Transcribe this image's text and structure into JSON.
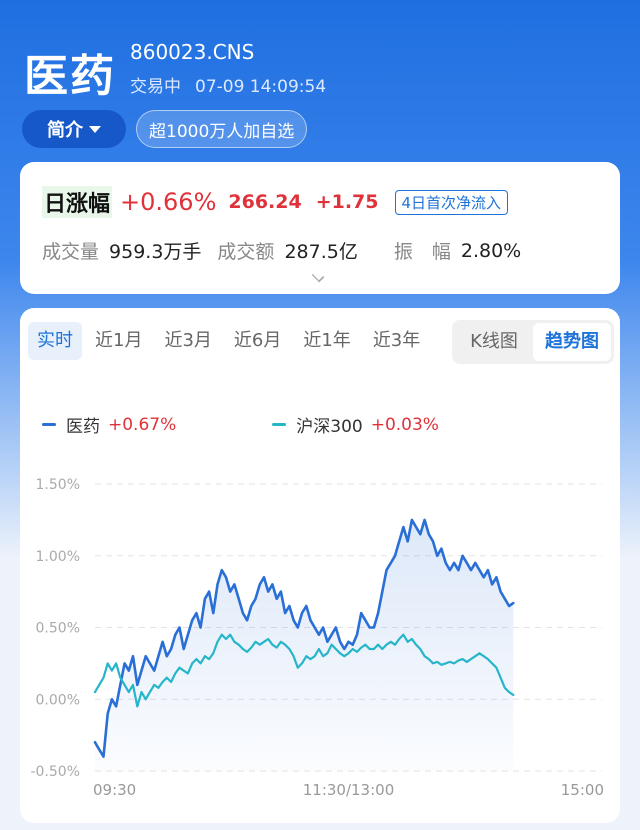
{
  "header": {
    "name": "医药",
    "code": "860023.CNS",
    "status": "交易中",
    "datetime": "07-09 14:09:54",
    "intro_label": "简介",
    "watch_label": "超1000万人加自选"
  },
  "quote": {
    "change_label": "日涨幅",
    "change_pct": "+0.66%",
    "price": "266.24",
    "change_abs": "+1.75",
    "flow_badge": "4日首次净流入",
    "volume_label": "成交量",
    "volume_value": "959.3万手",
    "amount_label": "成交额",
    "amount_value": "287.5亿",
    "amplitude_label": "振　幅",
    "amplitude_value": "2.80%"
  },
  "tabs": [
    "实时",
    "近1月",
    "近3月",
    "近6月",
    "近1年",
    "近3年"
  ],
  "active_tab": 0,
  "modes": [
    "K线图",
    "趋势图"
  ],
  "active_mode": 1,
  "colors": {
    "series_main": "#2a6fd6",
    "series_index": "#26b5c9",
    "up": "#e0323a",
    "accent": "#1e73d8"
  },
  "chart_data": {
    "type": "line",
    "xlabel": "",
    "ylabel": "",
    "x_ticks": [
      "09:30",
      "11:30/13:00",
      "15:00"
    ],
    "y_ticks": [
      "1.50%",
      "1.00%",
      "0.50%",
      "0.00%",
      "-0.50%"
    ],
    "ylim": [
      -0.5,
      1.5
    ],
    "x_range_minutes": [
      0,
      240
    ],
    "grid": true,
    "legend_position": "top-left",
    "series": [
      {
        "name": "医药",
        "value_label": "+0.67%",
        "color": "#2a6fd6",
        "fill": true,
        "points": [
          [
            0,
            -0.3
          ],
          [
            2,
            -0.35
          ],
          [
            4,
            -0.4
          ],
          [
            6,
            -0.1
          ],
          [
            8,
            0.0
          ],
          [
            10,
            -0.05
          ],
          [
            12,
            0.1
          ],
          [
            14,
            0.25
          ],
          [
            16,
            0.2
          ],
          [
            18,
            0.3
          ],
          [
            20,
            0.1
          ],
          [
            22,
            0.2
          ],
          [
            24,
            0.3
          ],
          [
            26,
            0.25
          ],
          [
            28,
            0.2
          ],
          [
            30,
            0.3
          ],
          [
            32,
            0.4
          ],
          [
            34,
            0.3
          ],
          [
            36,
            0.35
          ],
          [
            38,
            0.45
          ],
          [
            40,
            0.5
          ],
          [
            42,
            0.35
          ],
          [
            44,
            0.45
          ],
          [
            46,
            0.55
          ],
          [
            48,
            0.6
          ],
          [
            50,
            0.5
          ],
          [
            52,
            0.7
          ],
          [
            54,
            0.75
          ],
          [
            56,
            0.6
          ],
          [
            58,
            0.8
          ],
          [
            60,
            0.9
          ],
          [
            62,
            0.85
          ],
          [
            64,
            0.75
          ],
          [
            66,
            0.8
          ],
          [
            68,
            0.7
          ],
          [
            70,
            0.6
          ],
          [
            72,
            0.55
          ],
          [
            74,
            0.65
          ],
          [
            76,
            0.7
          ],
          [
            78,
            0.8
          ],
          [
            80,
            0.85
          ],
          [
            82,
            0.75
          ],
          [
            84,
            0.8
          ],
          [
            86,
            0.7
          ],
          [
            88,
            0.75
          ],
          [
            90,
            0.6
          ],
          [
            92,
            0.65
          ],
          [
            94,
            0.55
          ],
          [
            96,
            0.5
          ],
          [
            98,
            0.6
          ],
          [
            100,
            0.65
          ],
          [
            102,
            0.55
          ],
          [
            104,
            0.5
          ],
          [
            106,
            0.45
          ],
          [
            108,
            0.5
          ],
          [
            110,
            0.4
          ],
          [
            112,
            0.45
          ],
          [
            114,
            0.5
          ],
          [
            116,
            0.4
          ],
          [
            118,
            0.35
          ],
          [
            120,
            0.4
          ],
          [
            122,
            0.38
          ],
          [
            124,
            0.45
          ],
          [
            126,
            0.6
          ],
          [
            128,
            0.55
          ],
          [
            130,
            0.5
          ],
          [
            132,
            0.5
          ],
          [
            134,
            0.6
          ],
          [
            136,
            0.75
          ],
          [
            138,
            0.9
          ],
          [
            140,
            0.95
          ],
          [
            142,
            1.0
          ],
          [
            144,
            1.1
          ],
          [
            146,
            1.2
          ],
          [
            148,
            1.1
          ],
          [
            150,
            1.25
          ],
          [
            152,
            1.2
          ],
          [
            154,
            1.15
          ],
          [
            156,
            1.25
          ],
          [
            158,
            1.15
          ],
          [
            160,
            1.1
          ],
          [
            162,
            1.0
          ],
          [
            164,
            1.05
          ],
          [
            166,
            0.95
          ],
          [
            168,
            0.9
          ],
          [
            170,
            0.95
          ],
          [
            172,
            0.9
          ],
          [
            174,
            1.0
          ],
          [
            176,
            0.95
          ],
          [
            178,
            0.9
          ],
          [
            180,
            0.95
          ],
          [
            182,
            0.9
          ],
          [
            184,
            0.85
          ],
          [
            186,
            0.9
          ],
          [
            188,
            0.8
          ],
          [
            190,
            0.85
          ],
          [
            192,
            0.75
          ],
          [
            194,
            0.7
          ],
          [
            196,
            0.65
          ],
          [
            198,
            0.67
          ]
        ]
      },
      {
        "name": "沪深300",
        "value_label": "+0.03%",
        "color": "#26b5c9",
        "fill": false,
        "points": [
          [
            0,
            0.05
          ],
          [
            2,
            0.1
          ],
          [
            4,
            0.15
          ],
          [
            6,
            0.25
          ],
          [
            8,
            0.2
          ],
          [
            10,
            0.25
          ],
          [
            12,
            0.15
          ],
          [
            14,
            0.1
          ],
          [
            16,
            0.05
          ],
          [
            18,
            0.1
          ],
          [
            20,
            -0.05
          ],
          [
            22,
            0.05
          ],
          [
            24,
            0.0
          ],
          [
            26,
            0.05
          ],
          [
            28,
            0.1
          ],
          [
            30,
            0.08
          ],
          [
            32,
            0.12
          ],
          [
            34,
            0.15
          ],
          [
            36,
            0.12
          ],
          [
            38,
            0.18
          ],
          [
            40,
            0.22
          ],
          [
            42,
            0.2
          ],
          [
            44,
            0.18
          ],
          [
            46,
            0.25
          ],
          [
            48,
            0.28
          ],
          [
            50,
            0.25
          ],
          [
            52,
            0.3
          ],
          [
            54,
            0.28
          ],
          [
            56,
            0.32
          ],
          [
            58,
            0.4
          ],
          [
            60,
            0.45
          ],
          [
            62,
            0.42
          ],
          [
            64,
            0.45
          ],
          [
            66,
            0.4
          ],
          [
            68,
            0.38
          ],
          [
            70,
            0.35
          ],
          [
            72,
            0.33
          ],
          [
            74,
            0.36
          ],
          [
            76,
            0.4
          ],
          [
            78,
            0.38
          ],
          [
            80,
            0.4
          ],
          [
            82,
            0.42
          ],
          [
            84,
            0.38
          ],
          [
            86,
            0.36
          ],
          [
            88,
            0.4
          ],
          [
            90,
            0.38
          ],
          [
            92,
            0.35
          ],
          [
            94,
            0.3
          ],
          [
            96,
            0.22
          ],
          [
            98,
            0.25
          ],
          [
            100,
            0.3
          ],
          [
            102,
            0.28
          ],
          [
            104,
            0.3
          ],
          [
            106,
            0.35
          ],
          [
            108,
            0.3
          ],
          [
            110,
            0.32
          ],
          [
            112,
            0.38
          ],
          [
            114,
            0.35
          ],
          [
            116,
            0.32
          ],
          [
            118,
            0.3
          ],
          [
            120,
            0.32
          ],
          [
            122,
            0.35
          ],
          [
            124,
            0.33
          ],
          [
            126,
            0.36
          ],
          [
            128,
            0.38
          ],
          [
            130,
            0.35
          ],
          [
            132,
            0.35
          ],
          [
            134,
            0.38
          ],
          [
            136,
            0.35
          ],
          [
            138,
            0.38
          ],
          [
            140,
            0.4
          ],
          [
            142,
            0.38
          ],
          [
            144,
            0.42
          ],
          [
            146,
            0.45
          ],
          [
            148,
            0.4
          ],
          [
            150,
            0.42
          ],
          [
            152,
            0.38
          ],
          [
            154,
            0.35
          ],
          [
            156,
            0.3
          ],
          [
            158,
            0.28
          ],
          [
            160,
            0.25
          ],
          [
            162,
            0.26
          ],
          [
            164,
            0.24
          ],
          [
            166,
            0.25
          ],
          [
            168,
            0.26
          ],
          [
            170,
            0.25
          ],
          [
            172,
            0.27
          ],
          [
            174,
            0.28
          ],
          [
            176,
            0.26
          ],
          [
            178,
            0.28
          ],
          [
            180,
            0.3
          ],
          [
            182,
            0.32
          ],
          [
            184,
            0.3
          ],
          [
            186,
            0.28
          ],
          [
            188,
            0.25
          ],
          [
            190,
            0.22
          ],
          [
            192,
            0.15
          ],
          [
            194,
            0.08
          ],
          [
            196,
            0.05
          ],
          [
            198,
            0.03
          ]
        ]
      }
    ]
  }
}
